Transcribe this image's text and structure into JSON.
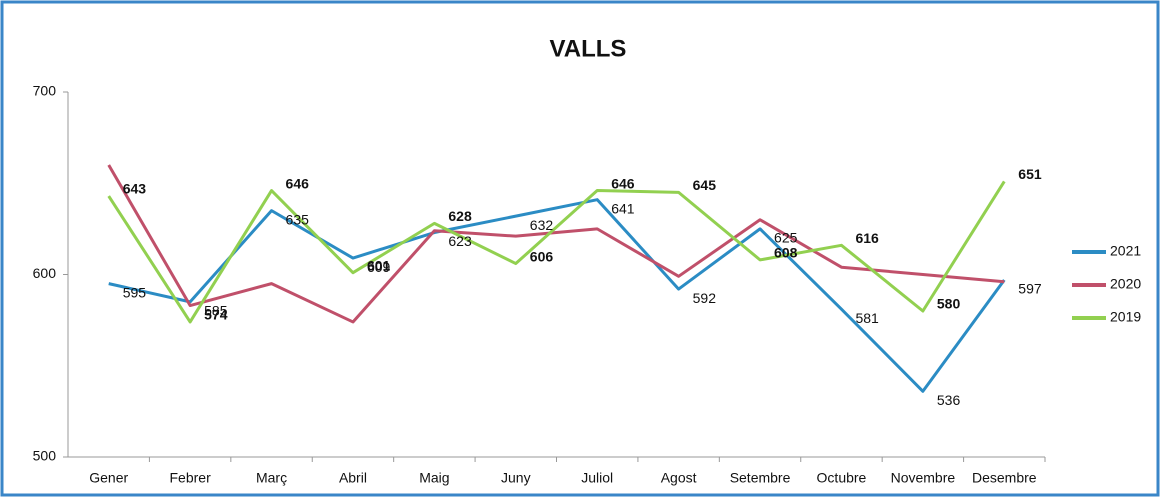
{
  "chart_data": {
    "type": "line",
    "title": "VALLS",
    "categories": [
      "Gener",
      "Febrer",
      "Març",
      "Abril",
      "Maig",
      "Juny",
      "Juliol",
      "Agost",
      "Setembre",
      "Octubre",
      "Novembre",
      "Desembre"
    ],
    "series": [
      {
        "name": "2021",
        "color": "#2b8cc4",
        "data_labels": true,
        "values": [
          595,
          585,
          635,
          609,
          623,
          632,
          641,
          592,
          625,
          581,
          536,
          597
        ]
      },
      {
        "name": "2020",
        "color": "#c0506a",
        "data_labels": false,
        "values": [
          660,
          583,
          595,
          574,
          624,
          621,
          625,
          599,
          630,
          604,
          600,
          596
        ]
      },
      {
        "name": "2019",
        "color": "#92d050",
        "data_labels": true,
        "values": [
          643,
          574,
          646,
          601,
          628,
          606,
          646,
          645,
          608,
          616,
          580,
          651
        ]
      }
    ],
    "ylim": [
      500,
      700
    ],
    "yticks": [
      500,
      600,
      700
    ],
    "grid": false,
    "legend": "right"
  }
}
